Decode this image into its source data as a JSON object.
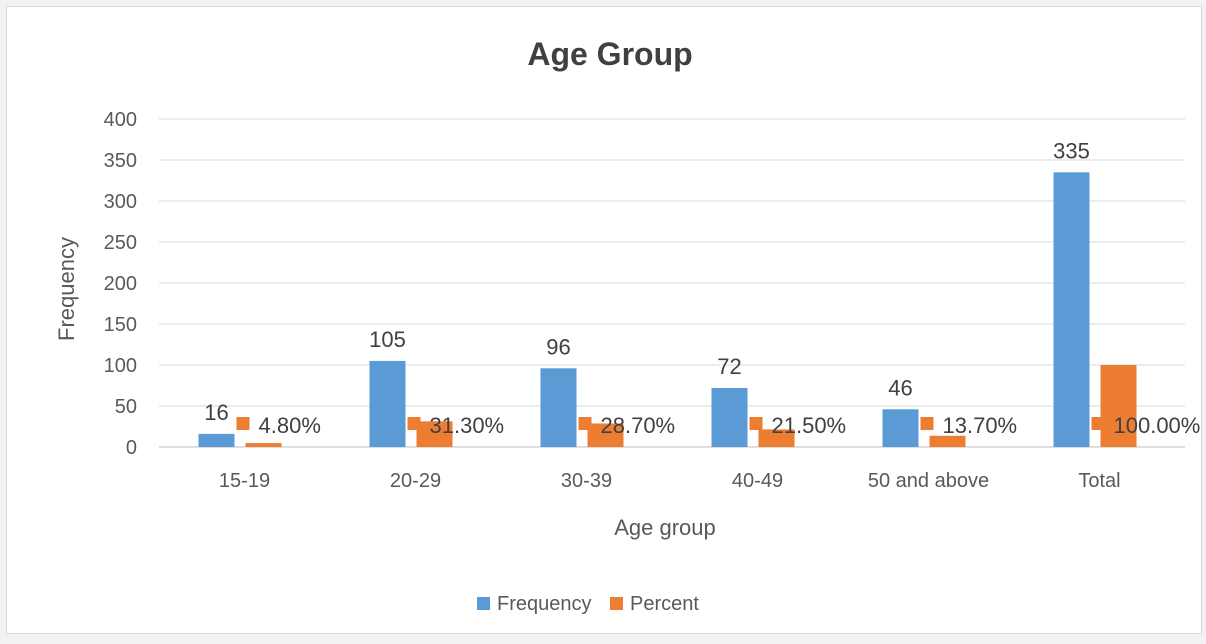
{
  "chart_data": {
    "type": "bar",
    "title": "Age Group",
    "xlabel": "Age group",
    "ylabel": "Frequency",
    "categories": [
      "15-19",
      "20-29",
      "30-39",
      "40-49",
      "50 and above",
      "Total"
    ],
    "ylim": [
      0,
      400
    ],
    "yticks": [
      0,
      50,
      100,
      150,
      200,
      250,
      300,
      350,
      400
    ],
    "grid": true,
    "legend_position": "bottom",
    "series": [
      {
        "name": "Frequency",
        "color": "#5b9bd5",
        "values": [
          16,
          105,
          96,
          72,
          46,
          335
        ],
        "labels": [
          "16",
          "105",
          "96",
          "72",
          "46",
          "335"
        ]
      },
      {
        "name": "Percent",
        "color": "#ed7d31",
        "values": [
          4.8,
          31.3,
          28.7,
          21.5,
          13.7,
          100.0
        ],
        "labels": [
          "4.80%",
          "31.30%",
          "28.70%",
          "21.50%",
          "13.70%",
          "100.00%"
        ]
      }
    ]
  }
}
